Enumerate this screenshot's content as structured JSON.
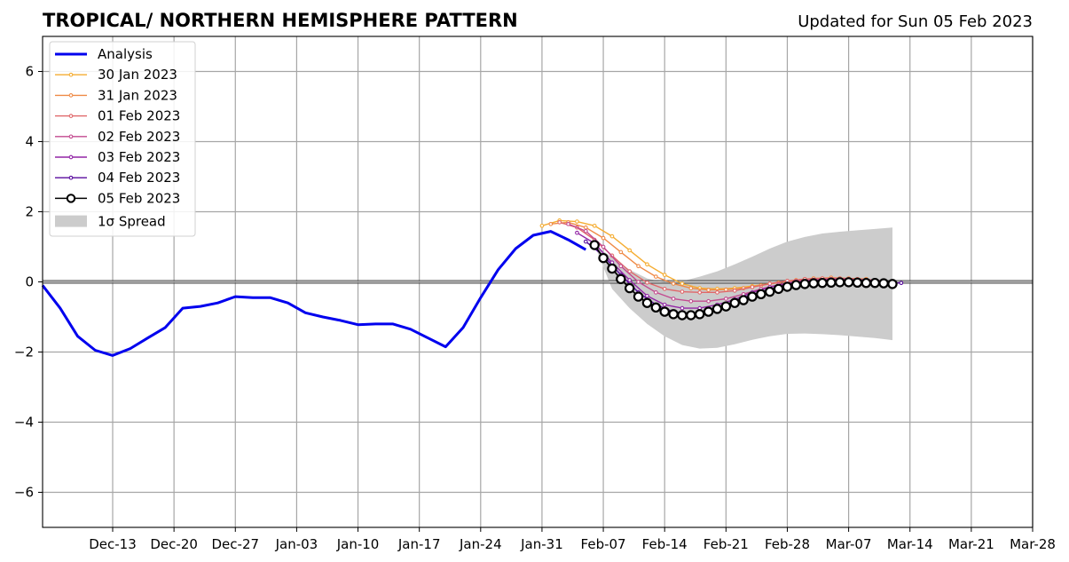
{
  "chart_data": {
    "type": "line",
    "title": "TROPICAL/ NORTHERN HEMISPHERE PATTERN",
    "subtitle": "Updated for Sun 05 Feb 2023",
    "xlabel": "",
    "ylabel": "",
    "ylim": [
      -7,
      7
    ],
    "yticks": [
      -6,
      -4,
      -2,
      0,
      2,
      4,
      6
    ],
    "ytick_labels": [
      "−6",
      "−4",
      "−2",
      "0",
      "2",
      "4",
      "6"
    ],
    "xlim": [
      "2022-12-05",
      "2023-03-28"
    ],
    "xticks": [
      "2022-12-13",
      "2022-12-20",
      "2022-12-27",
      "2023-01-03",
      "2023-01-10",
      "2023-01-17",
      "2023-01-24",
      "2023-01-31",
      "2023-02-07",
      "2023-02-14",
      "2023-02-21",
      "2023-02-28",
      "2023-03-07",
      "2023-03-14",
      "2023-03-21",
      "2023-03-28"
    ],
    "xtick_labels": [
      "Dec-13",
      "Dec-20",
      "Dec-27",
      "Jan-03",
      "Jan-10",
      "Jan-17",
      "Jan-24",
      "Jan-31",
      "Feb-07",
      "Feb-14",
      "Feb-21",
      "Feb-28",
      "Mar-07",
      "Mar-14",
      "Mar-21",
      "Mar-28"
    ],
    "grid": true,
    "legend_position": "top-left",
    "series": [
      {
        "name": "Analysis",
        "color": "#0000ee",
        "x": [
          "2022-12-05",
          "2022-12-07",
          "2022-12-09",
          "2022-12-11",
          "2022-12-13",
          "2022-12-15",
          "2022-12-17",
          "2022-12-19",
          "2022-12-21",
          "2022-12-23",
          "2022-12-25",
          "2022-12-27",
          "2022-12-29",
          "2022-12-31",
          "2023-01-02",
          "2023-01-04",
          "2023-01-06",
          "2023-01-08",
          "2023-01-10",
          "2023-01-12",
          "2023-01-14",
          "2023-01-16",
          "2023-01-18",
          "2023-01-20",
          "2023-01-22",
          "2023-01-24",
          "2023-01-26",
          "2023-01-28",
          "2023-01-30",
          "2023-02-01",
          "2023-02-03",
          "2023-02-05"
        ],
        "values": [
          -0.1,
          -0.75,
          -1.55,
          -1.95,
          -2.1,
          -1.9,
          -1.6,
          -1.3,
          -0.75,
          -0.7,
          -0.6,
          -0.42,
          -0.45,
          -0.45,
          -0.6,
          -0.88,
          -1.0,
          -1.1,
          -1.22,
          -1.2,
          -1.2,
          -1.35,
          -1.6,
          -1.85,
          -1.3,
          -0.45,
          0.35,
          0.95,
          1.33,
          1.44,
          1.2,
          0.92
        ]
      },
      {
        "name": "30 Jan 2023",
        "color": "#f5ad32",
        "x": [
          "2023-01-31",
          "2023-02-02",
          "2023-02-04",
          "2023-02-06",
          "2023-02-08",
          "2023-02-10",
          "2023-02-12",
          "2023-02-14",
          "2023-02-16",
          "2023-02-18",
          "2023-02-20",
          "2023-02-22",
          "2023-02-24",
          "2023-02-26",
          "2023-02-28",
          "2023-03-02",
          "2023-03-04",
          "2023-03-06",
          "2023-03-08"
        ],
        "values": [
          1.6,
          1.75,
          1.72,
          1.6,
          1.3,
          0.9,
          0.5,
          0.2,
          -0.05,
          -0.18,
          -0.2,
          -0.18,
          -0.12,
          -0.05,
          0.02,
          0.08,
          0.1,
          0.1,
          0.08
        ]
      },
      {
        "name": "31 Jan 2023",
        "color": "#ef8a47",
        "x": [
          "2023-02-01",
          "2023-02-03",
          "2023-02-05",
          "2023-02-07",
          "2023-02-09",
          "2023-02-11",
          "2023-02-13",
          "2023-02-15",
          "2023-02-17",
          "2023-02-19",
          "2023-02-21",
          "2023-02-23",
          "2023-02-25",
          "2023-02-27",
          "2023-03-01",
          "2023-03-03",
          "2023-03-05",
          "2023-03-07",
          "2023-03-09"
        ],
        "values": [
          1.65,
          1.7,
          1.55,
          1.25,
          0.85,
          0.45,
          0.15,
          -0.05,
          -0.18,
          -0.23,
          -0.22,
          -0.18,
          -0.1,
          -0.02,
          0.05,
          0.1,
          0.12,
          0.1,
          0.08
        ]
      },
      {
        "name": "01 Feb 2023",
        "color": "#e0676a",
        "x": [
          "2023-02-02",
          "2023-02-04",
          "2023-02-06",
          "2023-02-08",
          "2023-02-10",
          "2023-02-12",
          "2023-02-14",
          "2023-02-16",
          "2023-02-18",
          "2023-02-20",
          "2023-02-22",
          "2023-02-24",
          "2023-02-26",
          "2023-02-28",
          "2023-03-02",
          "2023-03-04",
          "2023-03-06",
          "2023-03-08",
          "2023-03-10"
        ],
        "values": [
          1.7,
          1.55,
          1.2,
          0.75,
          0.3,
          -0.02,
          -0.2,
          -0.28,
          -0.3,
          -0.3,
          -0.25,
          -0.15,
          -0.05,
          0.03,
          0.08,
          0.1,
          0.1,
          0.08,
          0.05
        ]
      },
      {
        "name": "02 Feb 2023",
        "color": "#c34a8f",
        "x": [
          "2023-02-03",
          "2023-02-05",
          "2023-02-07",
          "2023-02-09",
          "2023-02-11",
          "2023-02-13",
          "2023-02-15",
          "2023-02-17",
          "2023-02-19",
          "2023-02-21",
          "2023-02-23",
          "2023-02-25",
          "2023-02-27",
          "2023-03-01",
          "2023-03-03",
          "2023-03-05",
          "2023-03-07",
          "2023-03-09",
          "2023-03-11"
        ],
        "values": [
          1.65,
          1.45,
          1.0,
          0.45,
          0.0,
          -0.3,
          -0.48,
          -0.55,
          -0.55,
          -0.48,
          -0.35,
          -0.2,
          -0.08,
          0.02,
          0.06,
          0.08,
          0.08,
          0.05,
          0.03
        ]
      },
      {
        "name": "03 Feb 2023",
        "color": "#9225a6",
        "x": [
          "2023-02-04",
          "2023-02-06",
          "2023-02-08",
          "2023-02-10",
          "2023-02-12",
          "2023-02-14",
          "2023-02-16",
          "2023-02-18",
          "2023-02-20",
          "2023-02-22",
          "2023-02-24",
          "2023-02-26",
          "2023-02-28",
          "2023-03-02",
          "2023-03-04",
          "2023-03-06",
          "2023-03-08",
          "2023-03-10",
          "2023-03-12"
        ],
        "values": [
          1.4,
          1.1,
          0.55,
          0.05,
          -0.4,
          -0.65,
          -0.75,
          -0.75,
          -0.65,
          -0.5,
          -0.3,
          -0.15,
          -0.05,
          0.02,
          0.05,
          0.06,
          0.05,
          0.03,
          0.0
        ]
      },
      {
        "name": "04 Feb 2023",
        "color": "#5a0b9e",
        "x": [
          "2023-02-05",
          "2023-02-07",
          "2023-02-09",
          "2023-02-11",
          "2023-02-13",
          "2023-02-15",
          "2023-02-17",
          "2023-02-19",
          "2023-02-21",
          "2023-02-23",
          "2023-02-25",
          "2023-02-27",
          "2023-03-01",
          "2023-03-03",
          "2023-03-05",
          "2023-03-07",
          "2023-03-09",
          "2023-03-11",
          "2023-03-13"
        ],
        "values": [
          1.15,
          0.75,
          0.2,
          -0.3,
          -0.65,
          -0.85,
          -0.9,
          -0.82,
          -0.65,
          -0.45,
          -0.28,
          -0.15,
          -0.05,
          0.0,
          0.02,
          0.02,
          0.0,
          -0.02,
          -0.03
        ]
      },
      {
        "name": "05 Feb 2023",
        "color": "#000000",
        "x": [
          "2023-02-06",
          "2023-02-07",
          "2023-02-08",
          "2023-02-09",
          "2023-02-10",
          "2023-02-11",
          "2023-02-12",
          "2023-02-13",
          "2023-02-14",
          "2023-02-15",
          "2023-02-16",
          "2023-02-17",
          "2023-02-18",
          "2023-02-19",
          "2023-02-20",
          "2023-02-21",
          "2023-02-22",
          "2023-02-23",
          "2023-02-24",
          "2023-02-25",
          "2023-02-26",
          "2023-02-27",
          "2023-02-28",
          "2023-03-01",
          "2023-03-02",
          "2023-03-03",
          "2023-03-04",
          "2023-03-05",
          "2023-03-06",
          "2023-03-07",
          "2023-03-08",
          "2023-03-09",
          "2023-03-10",
          "2023-03-11",
          "2023-03-12"
        ],
        "values": [
          1.05,
          0.68,
          0.38,
          0.08,
          -0.18,
          -0.42,
          -0.6,
          -0.73,
          -0.85,
          -0.92,
          -0.95,
          -0.95,
          -0.92,
          -0.85,
          -0.77,
          -0.7,
          -0.6,
          -0.52,
          -0.42,
          -0.35,
          -0.28,
          -0.2,
          -0.14,
          -0.09,
          -0.06,
          -0.04,
          -0.03,
          -0.02,
          -0.01,
          -0.01,
          -0.02,
          -0.03,
          -0.03,
          -0.04,
          -0.06
        ]
      }
    ],
    "spread": {
      "name": "1σ Spread",
      "color": "#cccccc",
      "x": [
        "2023-02-06",
        "2023-02-08",
        "2023-02-10",
        "2023-02-12",
        "2023-02-14",
        "2023-02-16",
        "2023-02-18",
        "2023-02-20",
        "2023-02-22",
        "2023-02-24",
        "2023-02-26",
        "2023-02-28",
        "2023-03-02",
        "2023-03-04",
        "2023-03-06",
        "2023-03-08",
        "2023-03-10",
        "2023-03-12"
      ],
      "upper": [
        1.05,
        0.7,
        0.35,
        0.1,
        -0.02,
        0.02,
        0.15,
        0.3,
        0.5,
        0.72,
        0.95,
        1.15,
        1.28,
        1.38,
        1.43,
        1.47,
        1.51,
        1.55
      ],
      "lower": [
        1.05,
        -0.2,
        -0.75,
        -1.2,
        -1.55,
        -1.8,
        -1.9,
        -1.88,
        -1.78,
        -1.65,
        -1.55,
        -1.48,
        -1.47,
        -1.49,
        -1.52,
        -1.56,
        -1.6,
        -1.66
      ]
    }
  }
}
